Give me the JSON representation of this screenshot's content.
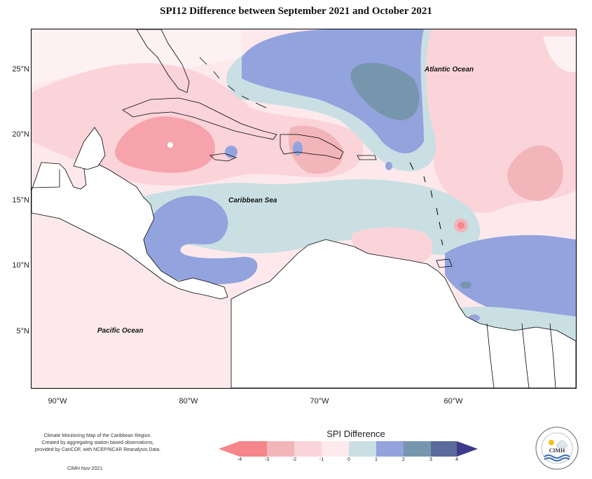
{
  "title": "SPI12 Difference between September 2021 and October 2021",
  "y_axis_labels": [
    "25°N",
    "20°N",
    "15°N",
    "10°N",
    "5°N"
  ],
  "x_axis_labels": [
    "90°W",
    "80°W",
    "70°W",
    "60°W"
  ],
  "ocean_labels": {
    "atlantic": "Atlantic Ocean",
    "caribbean": "Caribbean Sea",
    "pacific": "Pacific Ocean"
  },
  "credit": {
    "line1": "Climate Monitoring Map of the Caribbean Region.",
    "line2": "Created by aggregating station based observations,",
    "line3": "provided by CariCOF, with NCEP/NCAR Reanalysis Data.",
    "date": "CIMH Nov-2021"
  },
  "legend": {
    "title": "SPI Difference",
    "ticks": [
      "-4",
      "-3",
      "-2",
      "-1",
      "0",
      "1",
      "2",
      "3",
      "4"
    ],
    "colors": [
      "#f6858c",
      "#f1b5ba",
      "#fbd4da",
      "#fdeaee",
      "#c9dfe3",
      "#93a3dd",
      "#7696ae",
      "#5a6a9a",
      "#3d3a8c"
    ]
  },
  "logo_text": "CIMH"
}
